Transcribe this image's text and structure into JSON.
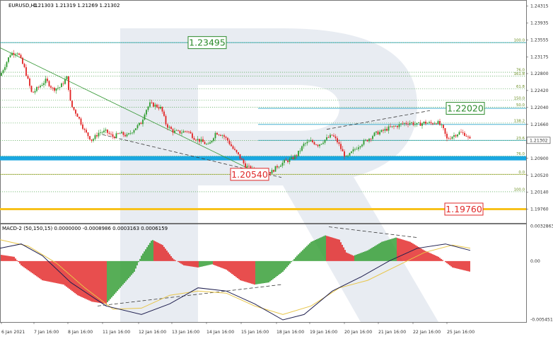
{
  "header": {
    "symbol_text": "EURUSD,H1",
    "ohlc_text": "1.21303 1.21319 1.21269 1.21302"
  },
  "colors": {
    "bull": "#2e9b2e",
    "bear": "#e22222",
    "fib": "#3a9a3a",
    "support_blue": "#1aa7e0",
    "support_yellow": "#f7c21c",
    "trend": "#3a3a3a",
    "box_green": "#2a8a2a",
    "box_red": "#e02a2a",
    "signal": "#e8c547",
    "macd_line": "#202050"
  },
  "chart_data": {
    "type": "candlestick",
    "symbol": "EURUSD",
    "timeframe": "H1",
    "price_axis": {
      "range": [
        1.1945,
        1.2445
      ],
      "ticks": [
        "1.24315",
        "1.23935",
        "1.23555",
        "1.23175",
        "1.22800",
        "1.22420",
        "1.22040",
        "1.21660",
        "1.21280",
        "1.20900",
        "1.20520",
        "1.20140",
        "1.19760"
      ]
    },
    "last_price": "1.21302",
    "time_axis": {
      "labels": [
        "6 Jan 2021",
        "7 Jan 16:00",
        "8 Jan 16:00",
        "11 Jan 16:00",
        "12 Jan 16:00",
        "13 Jan 16:00",
        "14 Jan 16:00",
        "15 Jan 16:00",
        "18 Jan 16:00",
        "19 Jan 16:00",
        "20 Jan 16:00",
        "21 Jan 16:00",
        "22 Jan 16:00",
        "25 Jan 16:00"
      ]
    },
    "close_path": [
      [
        0,
        1.2275
      ],
      [
        15,
        1.2325
      ],
      [
        25,
        1.2328
      ],
      [
        35,
        1.229
      ],
      [
        45,
        1.2235
      ],
      [
        55,
        1.225
      ],
      [
        65,
        1.2265
      ],
      [
        75,
        1.2245
      ],
      [
        85,
        1.225
      ],
      [
        95,
        1.2272
      ],
      [
        100,
        1.221
      ],
      [
        110,
        1.2185
      ],
      [
        120,
        1.215
      ],
      [
        130,
        1.213
      ],
      [
        140,
        1.2148
      ],
      [
        150,
        1.215
      ],
      [
        160,
        1.2138
      ],
      [
        170,
        1.2146
      ],
      [
        180,
        1.214
      ],
      [
        190,
        1.2156
      ],
      [
        200,
        1.217
      ],
      [
        205,
        1.2195
      ],
      [
        212,
        1.2212
      ],
      [
        220,
        1.2208
      ],
      [
        228,
        1.2202
      ],
      [
        235,
        1.2165
      ],
      [
        245,
        1.215
      ],
      [
        255,
        1.2148
      ],
      [
        265,
        1.2152
      ],
      [
        275,
        1.2135
      ],
      [
        285,
        1.2128
      ],
      [
        295,
        1.2118
      ],
      [
        305,
        1.2148
      ],
      [
        315,
        1.2142
      ],
      [
        322,
        1.213
      ],
      [
        330,
        1.211
      ],
      [
        338,
        1.2095
      ],
      [
        346,
        1.2075
      ],
      [
        355,
        1.2065
      ],
      [
        365,
        1.2062
      ],
      [
        375,
        1.2063
      ],
      [
        383,
        1.2058
      ],
      [
        392,
        1.2072
      ],
      [
        402,
        1.2082
      ],
      [
        412,
        1.2088
      ],
      [
        420,
        1.2098
      ],
      [
        430,
        1.2122
      ],
      [
        440,
        1.2128
      ],
      [
        450,
        1.212
      ],
      [
        460,
        1.2132
      ],
      [
        470,
        1.2142
      ],
      [
        478,
        1.2125
      ],
      [
        484,
        1.2105
      ],
      [
        490,
        1.209
      ],
      [
        500,
        1.2108
      ],
      [
        510,
        1.2122
      ],
      [
        520,
        1.2132
      ],
      [
        530,
        1.2145
      ],
      [
        540,
        1.215
      ],
      [
        550,
        1.2158
      ],
      [
        560,
        1.2162
      ],
      [
        570,
        1.2168
      ],
      [
        580,
        1.217
      ],
      [
        590,
        1.2165
      ],
      [
        600,
        1.217
      ],
      [
        610,
        1.2168
      ],
      [
        618,
        1.2172
      ],
      [
        626,
        1.2158
      ],
      [
        632,
        1.2133
      ],
      [
        640,
        1.214
      ],
      [
        650,
        1.2148
      ],
      [
        658,
        1.2144
      ],
      [
        665,
        1.213
      ]
    ],
    "fib_levels": [
      {
        "label": "100.0",
        "value": 1.23495
      },
      {
        "label": "76.0",
        "value": 1.2283
      },
      {
        "label": "161.8",
        "value": 1.2274
      },
      {
        "label": "61.8",
        "value": 1.2246
      },
      {
        "label": "150.0",
        "value": 1.222
      },
      {
        "label": "50.0",
        "value": 1.22042
      },
      {
        "label": "138.2",
        "value": 1.2169
      },
      {
        "label": "23.6",
        "value": 1.21302
      },
      {
        "label": "76.0",
        "value": 1.2095
      },
      {
        "label": "0.0",
        "value": 1.2054
      },
      {
        "label": "100.0",
        "value": 1.2015
      }
    ],
    "horizontal_levels": [
      {
        "price": 1.23495,
        "color": "#2aa5c9"
      },
      {
        "price": 1.2202,
        "color": "#2aa5c9"
      },
      {
        "price": 1.2166,
        "color": "#2aa5c9"
      },
      {
        "price": 1.21302,
        "color": "#2aa5c9"
      },
      {
        "price": 1.2054,
        "color": "#c8b84a"
      },
      {
        "price": 1.209,
        "color": "#1aa7e0",
        "thick": true
      },
      {
        "price": 1.1976,
        "color": "#f7c21c",
        "thick": true
      }
    ],
    "annotations": [
      {
        "text": "1.23495",
        "price": 1.23495,
        "style": "green"
      },
      {
        "text": "1.22020",
        "price": 1.2202,
        "style": "green"
      },
      {
        "text": "1.20540",
        "price": 1.2054,
        "style": "red"
      },
      {
        "text": "1.19760",
        "price": 1.1976,
        "style": "red"
      }
    ],
    "indicator": {
      "label": "MACD-2 (50,150,15) 0.0000000 -0.0008986 0.0003163 0.0006159",
      "axis_ticks": [
        "0.0032863",
        "0.00",
        "-0.0054515"
      ],
      "range": [
        -0.0057,
        0.0035
      ],
      "histogram_profile": [
        [
          0,
          0.0006
        ],
        [
          20,
          0.0004
        ],
        [
          30,
          -0.0004
        ],
        [
          60,
          -0.0018
        ],
        [
          90,
          -0.0022
        ],
        [
          110,
          -0.0032
        ],
        [
          130,
          -0.0038
        ],
        [
          150,
          -0.004
        ],
        [
          170,
          -0.0025
        ],
        [
          190,
          -0.001
        ],
        [
          200,
          0.0005
        ],
        [
          215,
          0.002
        ],
        [
          230,
          0.0015
        ],
        [
          245,
          0.0002
        ],
        [
          260,
          -0.0004
        ],
        [
          280,
          -0.0006
        ],
        [
          300,
          -0.0003
        ],
        [
          320,
          -0.0008
        ],
        [
          340,
          -0.0018
        ],
        [
          360,
          -0.0022
        ],
        [
          380,
          -0.002
        ],
        [
          400,
          -0.001
        ],
        [
          420,
          0.0005
        ],
        [
          440,
          0.0018
        ],
        [
          460,
          0.0024
        ],
        [
          480,
          0.002
        ],
        [
          490,
          0.0008
        ],
        [
          500,
          0.0005
        ],
        [
          520,
          0.001
        ],
        [
          540,
          0.0018
        ],
        [
          560,
          0.0022
        ],
        [
          580,
          0.0018
        ],
        [
          600,
          0.001
        ],
        [
          620,
          0.0004
        ],
        [
          640,
          -0.0006
        ],
        [
          665,
          -0.001
        ]
      ],
      "macd_line": [
        [
          0,
          0.0012
        ],
        [
          30,
          0.0016
        ],
        [
          60,
          0.0005
        ],
        [
          100,
          -0.002
        ],
        [
          150,
          -0.0042
        ],
        [
          200,
          -0.005
        ],
        [
          240,
          -0.004
        ],
        [
          280,
          -0.0025
        ],
        [
          320,
          -0.0028
        ],
        [
          360,
          -0.004
        ],
        [
          400,
          -0.0055
        ],
        [
          430,
          -0.005
        ],
        [
          470,
          -0.0028
        ],
        [
          510,
          -0.0015
        ],
        [
          550,
          0.0
        ],
        [
          590,
          0.0012
        ],
        [
          630,
          0.0016
        ],
        [
          665,
          0.001
        ]
      ],
      "signal_line": [
        [
          0,
          0.002
        ],
        [
          40,
          0.0014
        ],
        [
          80,
          -0.0002
        ],
        [
          120,
          -0.0025
        ],
        [
          160,
          -0.0045
        ],
        [
          200,
          -0.0044
        ],
        [
          240,
          -0.0032
        ],
        [
          280,
          -0.0028
        ],
        [
          320,
          -0.003
        ],
        [
          360,
          -0.0042
        ],
        [
          400,
          -0.005
        ],
        [
          440,
          -0.0042
        ],
        [
          480,
          -0.0025
        ],
        [
          520,
          -0.0018
        ],
        [
          560,
          -0.0005
        ],
        [
          600,
          0.0008
        ],
        [
          640,
          0.0015
        ],
        [
          665,
          0.0012
        ]
      ]
    }
  }
}
